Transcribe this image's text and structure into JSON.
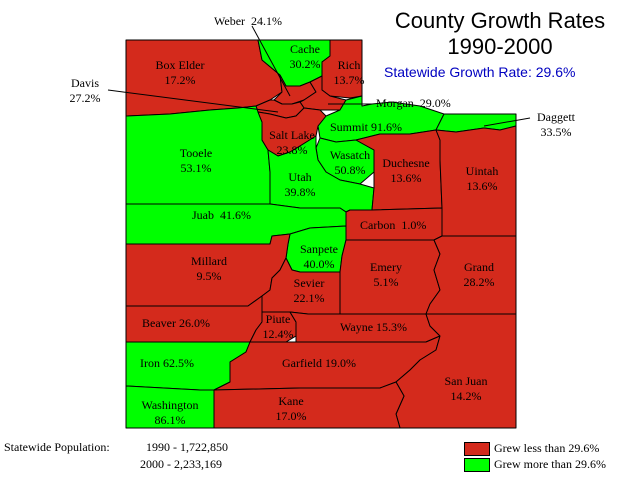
{
  "title": {
    "line1": "County Growth Rates",
    "line2": "1990-2000",
    "statewide": "Statewide Growth Rate: 29.6%"
  },
  "colors": {
    "grew_less": "#d42a1c",
    "grew_more": "#00ff00",
    "subtitle": "#0000c0",
    "border": "#000000"
  },
  "counties": {
    "box_elder": {
      "name": "Box Elder",
      "rate": "17.2%",
      "category": "less"
    },
    "cache": {
      "name": "Cache",
      "rate": "30.2%",
      "category": "more"
    },
    "rich": {
      "name": "Rich",
      "rate": "13.7%",
      "category": "less"
    },
    "weber": {
      "name": "Weber",
      "rate": "24.1%",
      "category": "less"
    },
    "davis": {
      "name": "Davis",
      "rate": "27.2%",
      "category": "less"
    },
    "morgan": {
      "name": "Morgan",
      "rate": "29.0%",
      "category": "less"
    },
    "daggett": {
      "name": "Daggett",
      "rate": "33.5%",
      "category": "more"
    },
    "tooele": {
      "name": "Tooele",
      "rate": "53.1%",
      "category": "more"
    },
    "salt_lake": {
      "name": "Salt Lake",
      "rate": "23.8%",
      "category": "less"
    },
    "summit": {
      "name": "Summit",
      "rate": "91.6%",
      "category": "more"
    },
    "wasatch": {
      "name": "Wasatch",
      "rate": "50.8%",
      "category": "more"
    },
    "utah": {
      "name": "Utah",
      "rate": "39.8%",
      "category": "more"
    },
    "duchesne": {
      "name": "Duchesne",
      "rate": "13.6%",
      "category": "less"
    },
    "uintah": {
      "name": "Uintah",
      "rate": "13.6%",
      "category": "less"
    },
    "juab": {
      "name": "Juab",
      "rate": "41.6%",
      "category": "more"
    },
    "carbon": {
      "name": "Carbon",
      "rate": "1.0%",
      "category": "less"
    },
    "millard": {
      "name": "Millard",
      "rate": "9.5%",
      "category": "less"
    },
    "sanpete": {
      "name": "Sanpete",
      "rate": "40.0%",
      "category": "more"
    },
    "sevier": {
      "name": "Sevier",
      "rate": "22.1%",
      "category": "less"
    },
    "emery": {
      "name": "Emery",
      "rate": "5.1%",
      "category": "less"
    },
    "grand": {
      "name": "Grand",
      "rate": "28.2%",
      "category": "less"
    },
    "beaver": {
      "name": "Beaver",
      "rate": "26.0%",
      "category": "less"
    },
    "piute": {
      "name": "Piute",
      "rate": "12.4%",
      "category": "less"
    },
    "wayne": {
      "name": "Wayne",
      "rate": "15.3%",
      "category": "less"
    },
    "iron": {
      "name": "Iron",
      "rate": "62.5%",
      "category": "more"
    },
    "garfield": {
      "name": "Garfield",
      "rate": "19.0%",
      "category": "less"
    },
    "san_juan": {
      "name": "San Juan",
      "rate": "14.2%",
      "category": "less"
    },
    "washington": {
      "name": "Washington",
      "rate": "86.1%",
      "category": "more"
    },
    "kane": {
      "name": "Kane",
      "rate": "17.0%",
      "category": "less"
    }
  },
  "population": {
    "label": "Statewide Population:",
    "y1990": "1990 - 1,722,850",
    "y2000": "2000 - 2,233,169"
  },
  "legend": {
    "less": "Grew less than 29.6%",
    "more": "Grew more than 29.6%"
  }
}
